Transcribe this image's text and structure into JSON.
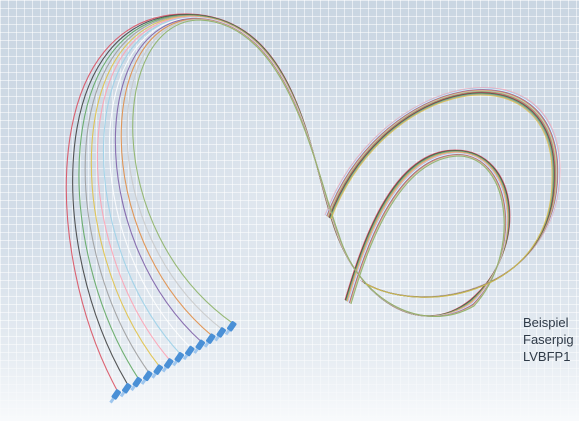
{
  "caption": {
    "line1": "Beispiel",
    "line2": "Faserpig",
    "line3": "LVBFP1"
  },
  "colors": {
    "background": "#cfdae5",
    "grid": "#ffffff",
    "connector": "#4a90d6",
    "fibers": [
      "#d94a5a",
      "#3a3a3a",
      "#5aa55a",
      "#9a9a9a",
      "#e0c040",
      "#ff9fb0",
      "#9ad0e8",
      "#ffffff",
      "#7a5aa5",
      "#e08a40",
      "#c8c8c8",
      "#8ab060"
    ]
  }
}
